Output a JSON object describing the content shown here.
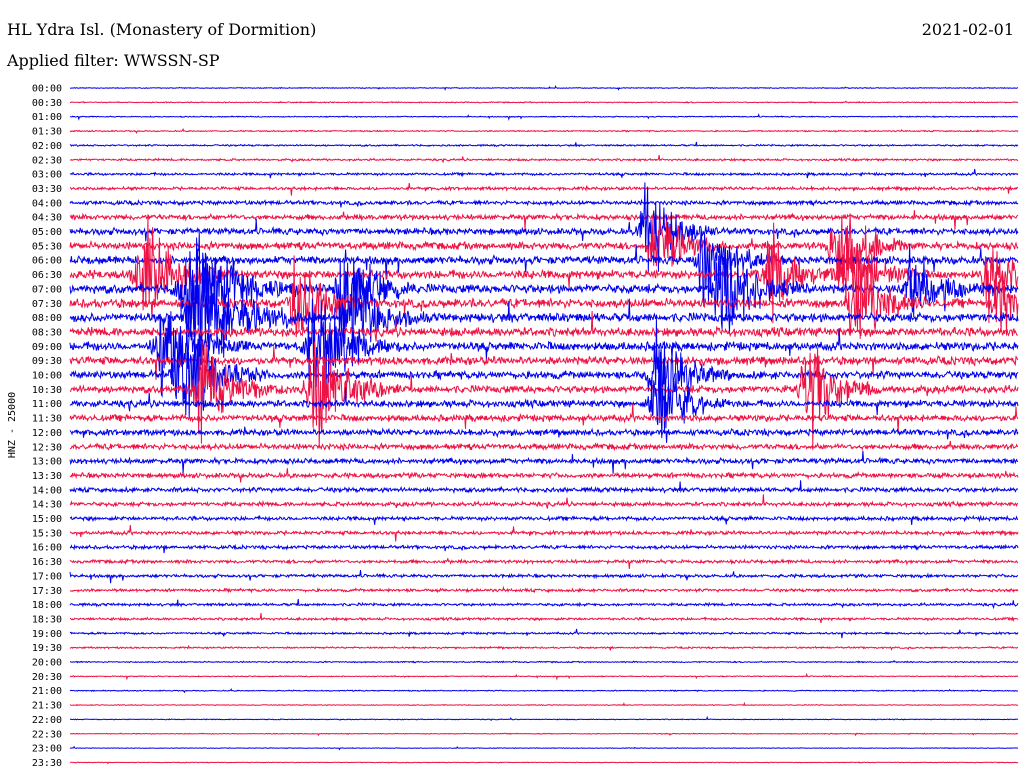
{
  "header": {
    "station": "HL Ydra Isl. (Monastery of Dormition)",
    "date": "2021-02-01",
    "filter": "Applied filter: WWSSN-SP"
  },
  "chart_data": {
    "type": "line",
    "ylabel": "HNZ - 25000",
    "colors": [
      "#0000ee",
      "#ee1144"
    ],
    "row_labels": [
      "00:00",
      "00:30",
      "01:00",
      "01:30",
      "02:00",
      "02:30",
      "03:00",
      "03:30",
      "04:00",
      "04:30",
      "05:00",
      "05:30",
      "06:00",
      "06:30",
      "07:00",
      "07:30",
      "08:00",
      "08:30",
      "09:00",
      "09:30",
      "10:00",
      "10:30",
      "11:00",
      "11:30",
      "12:00",
      "12:30",
      "13:00",
      "13:30",
      "14:00",
      "14:30",
      "15:00",
      "15:30",
      "16:00",
      "16:30",
      "17:00",
      "17:30",
      "18:00",
      "18:30",
      "19:00",
      "19:30",
      "20:00",
      "20:30",
      "21:00",
      "21:30",
      "22:00",
      "22:30",
      "23:00",
      "23:30"
    ],
    "noise_levels": [
      0.4,
      0.5,
      0.5,
      0.6,
      0.8,
      1.0,
      1.2,
      1.5,
      2.0,
      2.6,
      3.2,
      3.6,
      4.0,
      4.2,
      4.4,
      4.4,
      4.4,
      4.3,
      4.2,
      4.0,
      3.8,
      3.6,
      3.4,
      3.2,
      3.0,
      2.8,
      2.6,
      2.4,
      2.2,
      2.0,
      1.9,
      1.8,
      1.7,
      1.6,
      1.5,
      1.4,
      1.3,
      1.2,
      1.0,
      0.8,
      0.6,
      0.5,
      0.5,
      0.4,
      0.4,
      0.4,
      0.3,
      0.3
    ],
    "bursts": [
      {
        "row": 13,
        "x": 0.08,
        "amp": 70,
        "width": 0.06
      },
      {
        "row": 14,
        "x": 0.13,
        "amp": 90,
        "width": 0.08
      },
      {
        "row": 16,
        "x": 0.14,
        "amp": 80,
        "width": 0.08
      },
      {
        "row": 18,
        "x": 0.1,
        "amp": 60,
        "width": 0.06
      },
      {
        "row": 20,
        "x": 0.12,
        "amp": 75,
        "width": 0.06
      },
      {
        "row": 21,
        "x": 0.14,
        "amp": 60,
        "width": 0.06
      },
      {
        "row": 15,
        "x": 0.24,
        "amp": 60,
        "width": 0.05
      },
      {
        "row": 18,
        "x": 0.26,
        "amp": 80,
        "width": 0.06
      },
      {
        "row": 21,
        "x": 0.26,
        "amp": 70,
        "width": 0.06
      },
      {
        "row": 14,
        "x": 0.29,
        "amp": 80,
        "width": 0.05
      },
      {
        "row": 16,
        "x": 0.3,
        "amp": 70,
        "width": 0.05
      },
      {
        "row": 10,
        "x": 0.61,
        "amp": 70,
        "width": 0.05
      },
      {
        "row": 11,
        "x": 0.62,
        "amp": 60,
        "width": 0.05
      },
      {
        "row": 20,
        "x": 0.62,
        "amp": 80,
        "width": 0.05
      },
      {
        "row": 22,
        "x": 0.62,
        "amp": 70,
        "width": 0.05
      },
      {
        "row": 12,
        "x": 0.67,
        "amp": 60,
        "width": 0.05
      },
      {
        "row": 14,
        "x": 0.69,
        "amp": 70,
        "width": 0.06
      },
      {
        "row": 13,
        "x": 0.74,
        "amp": 60,
        "width": 0.05
      },
      {
        "row": 11,
        "x": 0.81,
        "amp": 70,
        "width": 0.05
      },
      {
        "row": 13,
        "x": 0.82,
        "amp": 60,
        "width": 0.05
      },
      {
        "row": 15,
        "x": 0.83,
        "amp": 70,
        "width": 0.05
      },
      {
        "row": 21,
        "x": 0.78,
        "amp": 80,
        "width": 0.05
      },
      {
        "row": 14,
        "x": 0.89,
        "amp": 60,
        "width": 0.05
      },
      {
        "row": 13,
        "x": 0.97,
        "amp": 60,
        "width": 0.04
      },
      {
        "row": 15,
        "x": 0.98,
        "amp": 50,
        "width": 0.04
      }
    ]
  }
}
